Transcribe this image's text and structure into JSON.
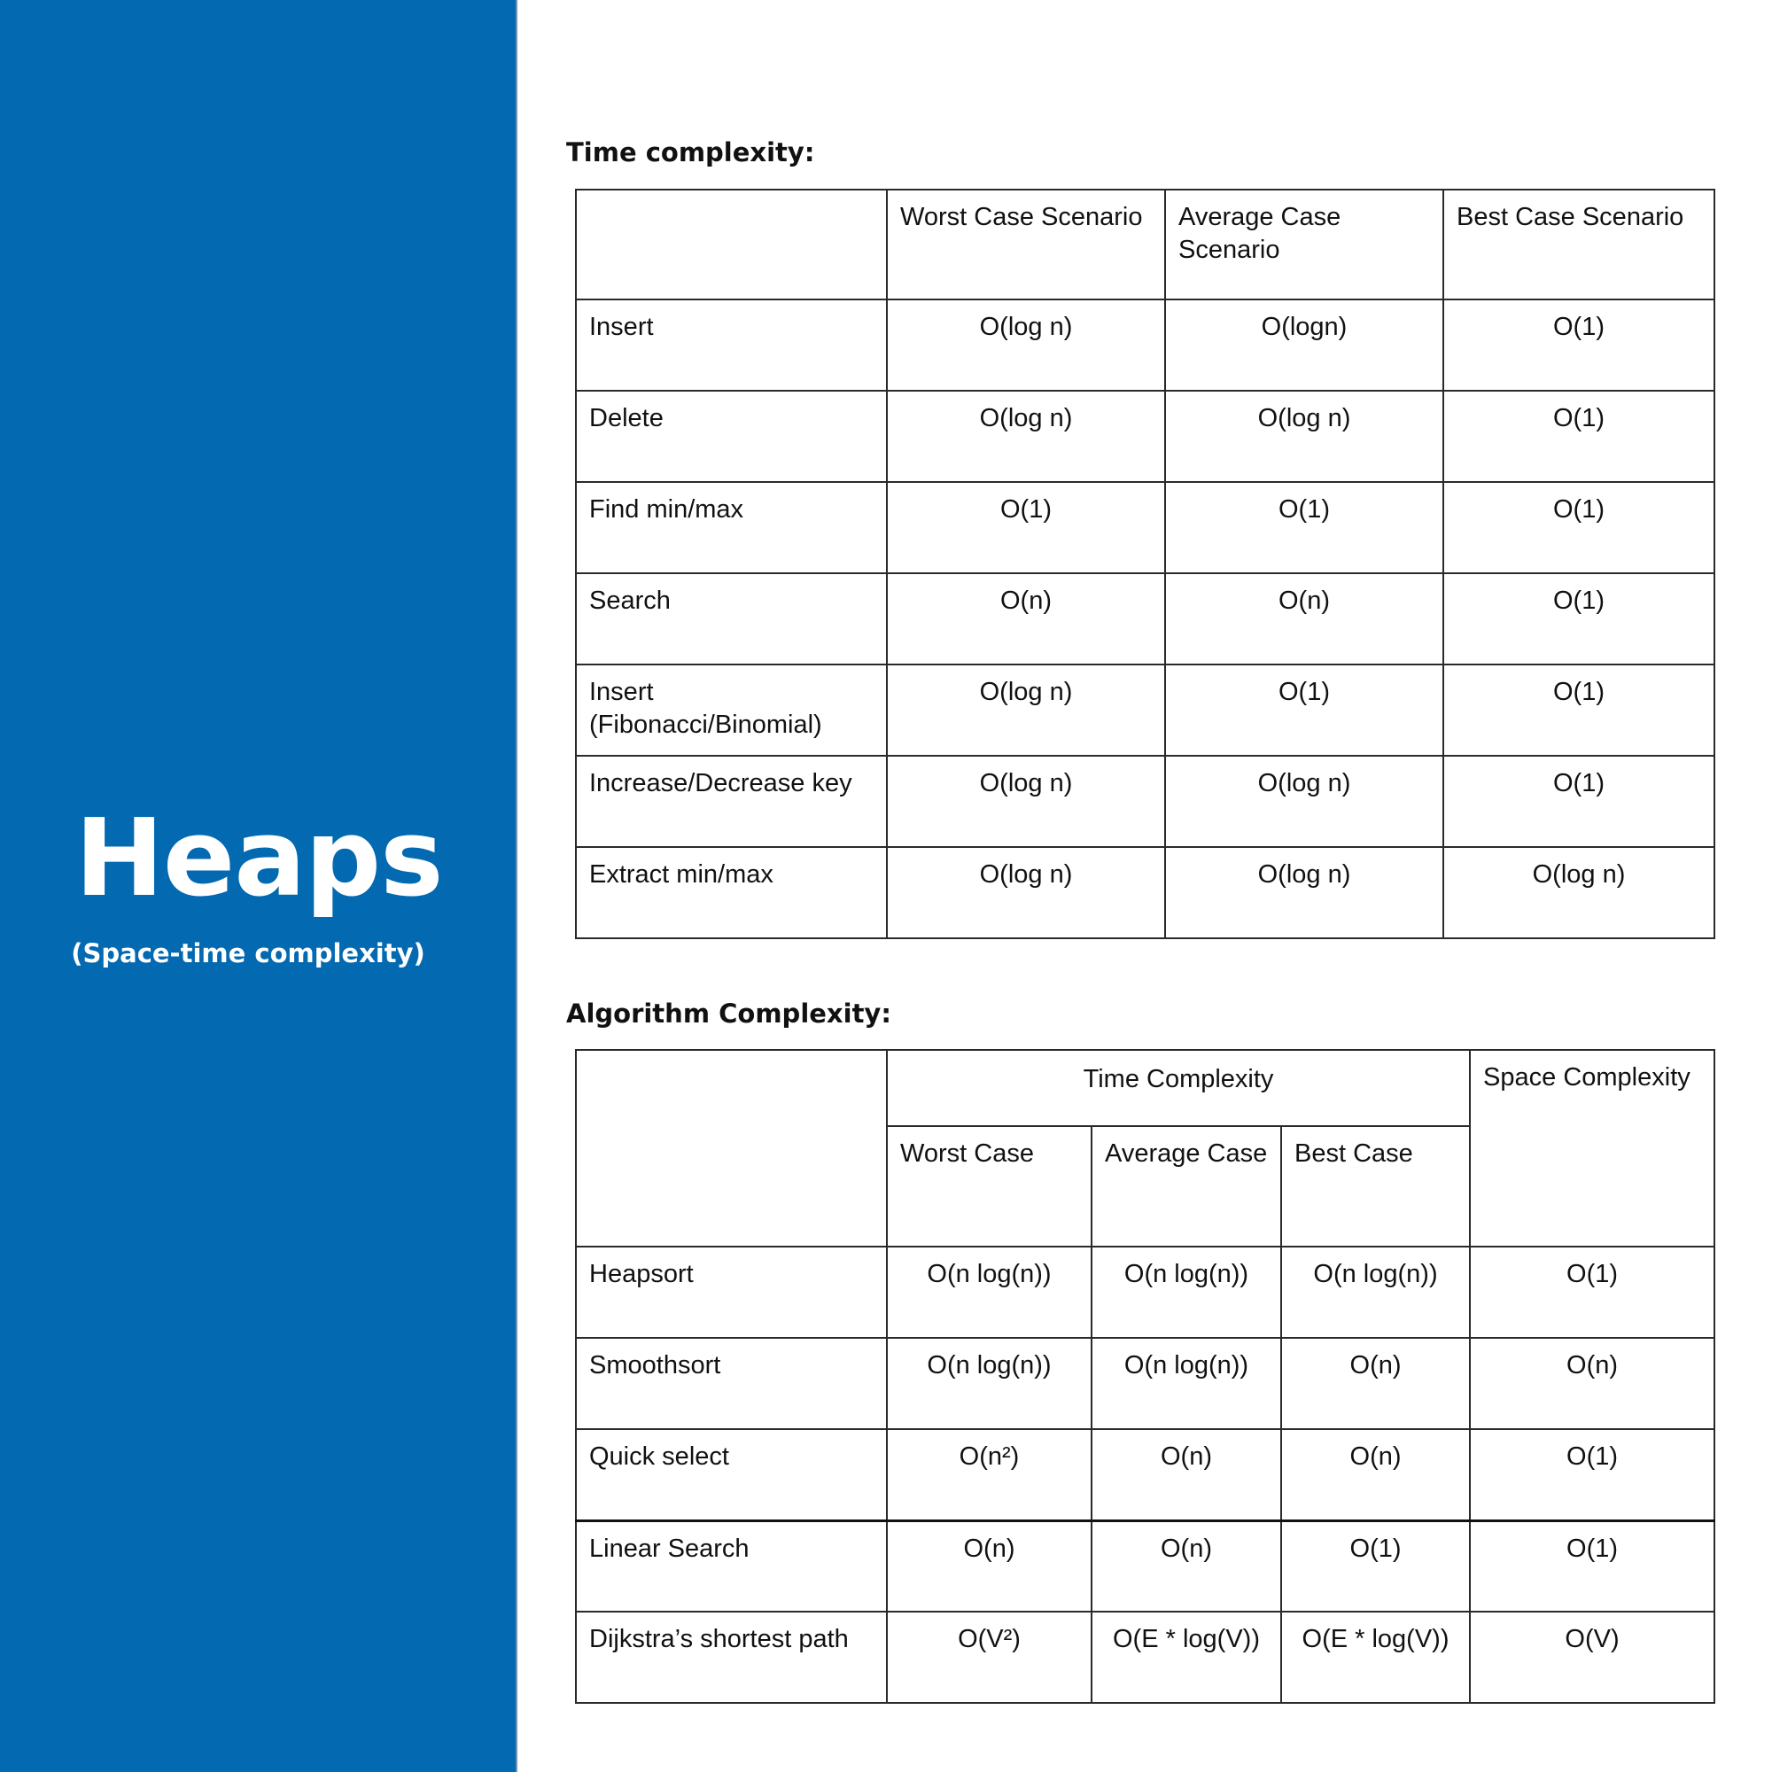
{
  "sidebar": {
    "title": "Heaps",
    "subtitle": "(Space-time complexity)",
    "background_color": "#0369b1"
  },
  "time_section": {
    "heading": "Time complexity:",
    "columns": [
      "",
      "Worst Case Scenario",
      "Average Case Scenario",
      "Best Case Scenario"
    ],
    "rows": [
      {
        "operation": "Insert",
        "worst": "O(log n)",
        "average": "O(logn)",
        "best": "O(1)"
      },
      {
        "operation": "Delete",
        "worst": "O(log n)",
        "average": "O(log n)",
        "best": "O(1)"
      },
      {
        "operation": "Find min/max",
        "worst": "O(1)",
        "average": "O(1)",
        "best": "O(1)"
      },
      {
        "operation": "Search",
        "worst": "O(n)",
        "average": "O(n)",
        "best": "O(1)"
      },
      {
        "operation": "Insert (Fibonacci/Binomial)",
        "worst": "O(log n)",
        "average": "O(1)",
        "best": "O(1)"
      },
      {
        "operation": "Increase/Decrease key",
        "worst": "O(log n)",
        "average": "O(log n)",
        "best": "O(1)"
      },
      {
        "operation": "Extract min/max",
        "worst": "O(log n)",
        "average": "O(log n)",
        "best": "O(log n)"
      }
    ]
  },
  "algo_section": {
    "heading": "Algorithm Complexity:",
    "group_header": "Time Complexity",
    "space_header": "Space Complexity",
    "sub_columns": [
      "Worst Case",
      "Average Case",
      "Best Case"
    ],
    "rows": [
      {
        "algorithm": "Heapsort",
        "worst": "O(n log(n))",
        "average": "O(n log(n))",
        "best": "O(n log(n))",
        "space": "O(1)"
      },
      {
        "algorithm": "Smoothsort",
        "worst": "O(n log(n))",
        "average": "O(n log(n))",
        "best": "O(n)",
        "space": "O(n)"
      },
      {
        "algorithm": "Quick select",
        "worst": "O(n²)",
        "average": "O(n)",
        "best": "O(n)",
        "space": "O(1)"
      },
      {
        "algorithm": "Linear Search",
        "worst": "O(n)",
        "average": "O(n)",
        "best": "O(1)",
        "space": "O(1)"
      },
      {
        "algorithm": "Dijkstra’s shortest path",
        "worst": "O(V²)",
        "average": "O(E * log(V))",
        "best": "O(E * log(V))",
        "space": "O(V)"
      }
    ]
  }
}
